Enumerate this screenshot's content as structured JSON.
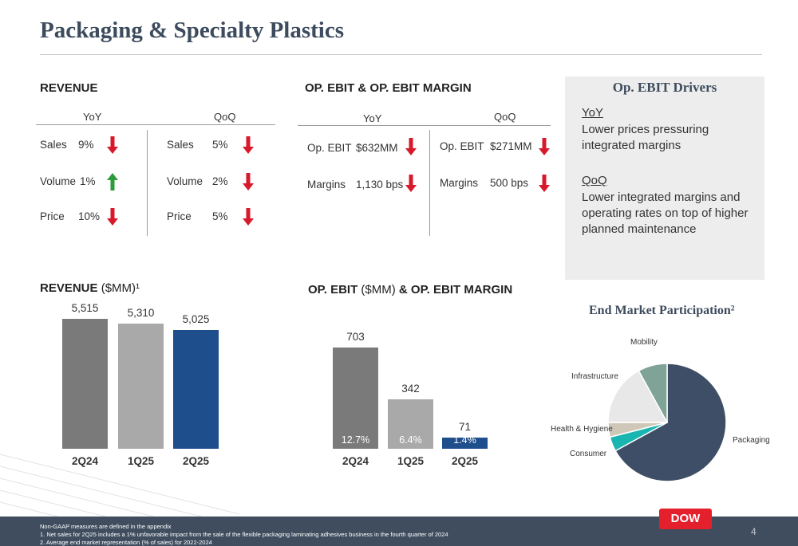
{
  "page": {
    "title": "Packaging & Specialty Plastics",
    "page_number": "4"
  },
  "revenue": {
    "heading": "REVENUE",
    "yoy_label": "YoY",
    "qoq_label": "QoQ",
    "yoy_rows": [
      {
        "label": "Sales",
        "value": "9%",
        "direction": "down"
      },
      {
        "label": "Volume",
        "value": "1%",
        "direction": "up"
      },
      {
        "label": "Price",
        "value": "10%",
        "direction": "down"
      }
    ],
    "qoq_rows": [
      {
        "label": "Sales",
        "value": "5%",
        "direction": "down"
      },
      {
        "label": "Volume",
        "value": "2%",
        "direction": "down"
      },
      {
        "label": "Price",
        "value": "5%",
        "direction": "down"
      }
    ]
  },
  "ebit": {
    "heading": "OP. EBIT & OP. EBIT MARGIN",
    "yoy_label": "YoY",
    "qoq_label": "QoQ",
    "yoy_rows": [
      {
        "label": "Op. EBIT",
        "value": "$632MM",
        "direction": "down"
      },
      {
        "label": "Margins",
        "value": "1,130 bps",
        "direction": "down"
      }
    ],
    "qoq_rows": [
      {
        "label": "Op. EBIT",
        "value": "$271MM",
        "direction": "down"
      },
      {
        "label": "Margins",
        "value": "500 bps",
        "direction": "down"
      }
    ]
  },
  "drivers": {
    "title": "Op. EBIT Drivers",
    "yoy_label": "YoY",
    "yoy_text": "Lower prices pressuring integrated margins",
    "qoq_label": "QoQ",
    "qoq_text": "Lower integrated margins and operating rates on top of higher planned maintenance"
  },
  "colors": {
    "arrow_down": "#d7192b",
    "arrow_up": "#2e9b3a",
    "bar_2q24": "#7a7a7a",
    "bar_1q25": "#a9a9a9",
    "bar_2q25": "#1f4e8c",
    "pie_packaging": "#3e4e66",
    "pie_consumer": "#19b5b0",
    "pie_health": "#cfc8b8",
    "pie_infrastructure": "#e8e8e8",
    "pie_mobility": "#7fa397"
  },
  "revenue_chart": {
    "heading_bold": "REVENUE",
    "heading_light": "($MM)¹"
  },
  "ebit_chart": {
    "heading_bold_1": "OP. EBIT",
    "heading_light": "($MM)",
    "heading_bold_2": "& OP. EBIT MARGIN"
  },
  "pie_chart": {
    "title": "End Market Participation²"
  },
  "chart_data": [
    {
      "type": "bar",
      "categories": [
        "2Q24",
        "1Q25",
        "2Q25"
      ],
      "values": [
        5515,
        5310,
        5025
      ],
      "value_labels": [
        "5,515",
        "5,310",
        "5,025"
      ],
      "title": "REVENUE ($MM)¹"
    },
    {
      "type": "bar",
      "categories": [
        "2Q24",
        "1Q25",
        "2Q25"
      ],
      "values": [
        703,
        342,
        71
      ],
      "value_labels": [
        "703",
        "342",
        "71"
      ],
      "margins": [
        "12.7%",
        "6.4%",
        "1.4%"
      ],
      "title": "OP. EBIT ($MM) & OP. EBIT MARGIN"
    },
    {
      "type": "pie",
      "title": "End Market Participation²",
      "labels": [
        "Packaging",
        "Consumer",
        "Health & Hygiene",
        "Infrastructure",
        "Mobility"
      ],
      "values": [
        67,
        4,
        4,
        17,
        8
      ]
    }
  ],
  "footer": {
    "line1": "Non-GAAP measures are defined in the appendix",
    "line2": "1. Net sales for 2Q25 includes a 1% unfavorable impact from the sale of the flexible packaging laminating adhesives business in the fourth quarter of 2024",
    "line3": "2. Average end market representation (% of sales) for 2022-2024",
    "logo_text": "DOW"
  }
}
